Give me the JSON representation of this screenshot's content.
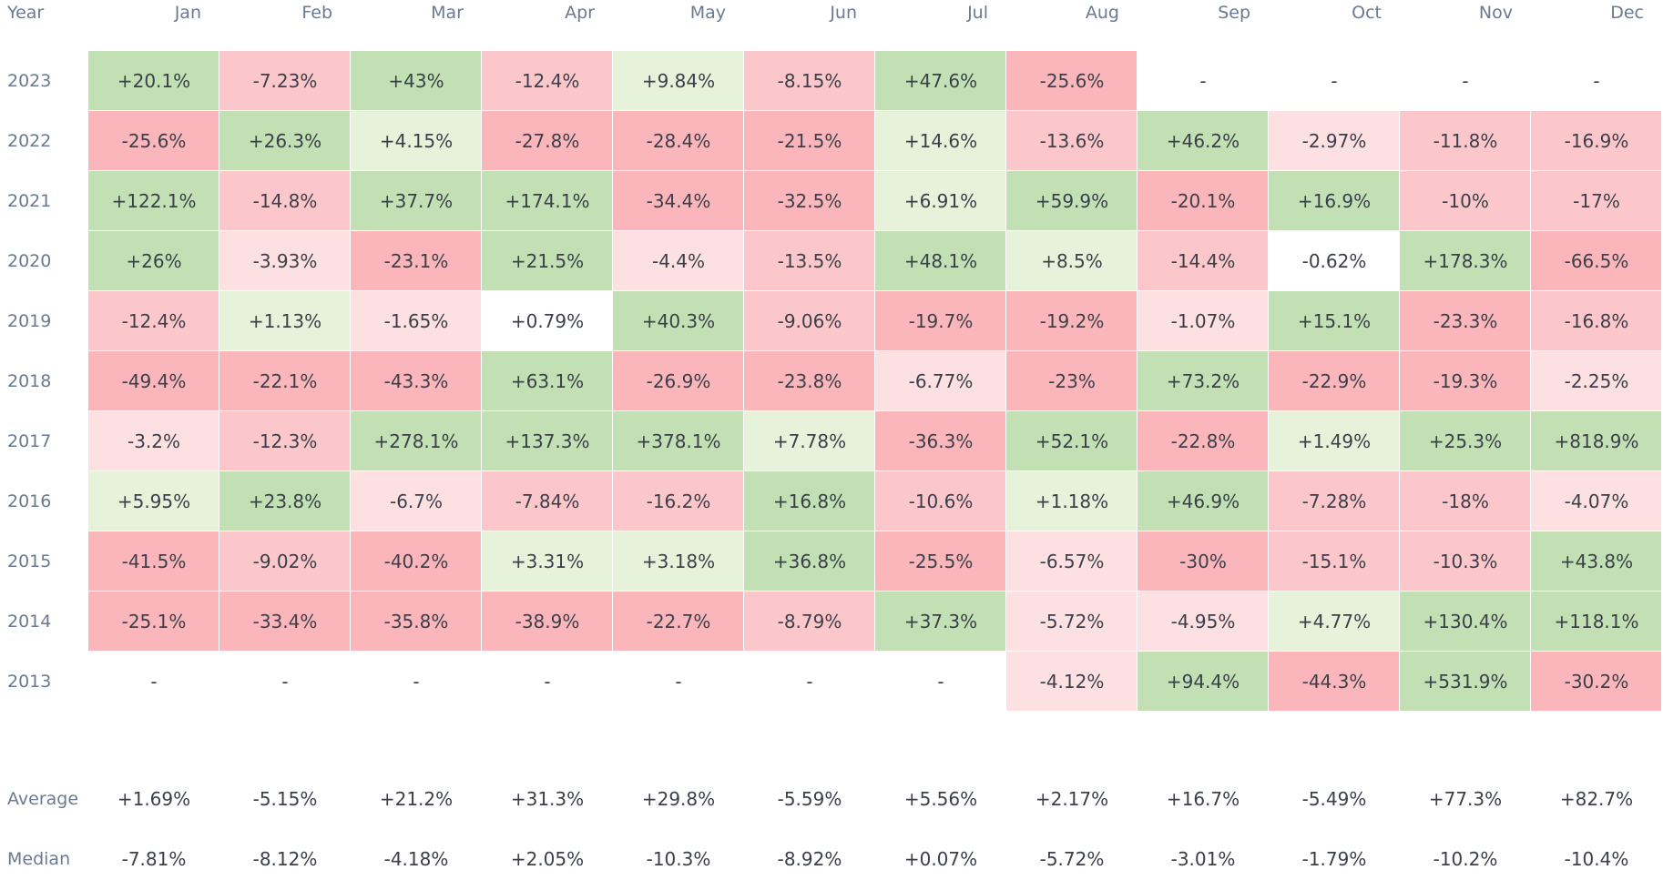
{
  "chart_data": {
    "type": "heatmap",
    "corner_label": "Year",
    "columns": [
      "Jan",
      "Feb",
      "Mar",
      "Apr",
      "May",
      "Jun",
      "Jul",
      "Aug",
      "Sep",
      "Oct",
      "Nov",
      "Dec"
    ],
    "rows": [
      {
        "year": "2023",
        "values": [
          "+20.1%",
          "-7.23%",
          "+43%",
          "-12.4%",
          "+9.84%",
          "-8.15%",
          "+47.6%",
          "-25.6%",
          "-",
          "-",
          "-",
          "-"
        ]
      },
      {
        "year": "2022",
        "values": [
          "-25.6%",
          "+26.3%",
          "+4.15%",
          "-27.8%",
          "-28.4%",
          "-21.5%",
          "+14.6%",
          "-13.6%",
          "+46.2%",
          "-2.97%",
          "-11.8%",
          "-16.9%"
        ]
      },
      {
        "year": "2021",
        "values": [
          "+122.1%",
          "-14.8%",
          "+37.7%",
          "+174.1%",
          "-34.4%",
          "-32.5%",
          "+6.91%",
          "+59.9%",
          "-20.1%",
          "+16.9%",
          "-10%",
          "-17%"
        ]
      },
      {
        "year": "2020",
        "values": [
          "+26%",
          "-3.93%",
          "-23.1%",
          "+21.5%",
          "-4.4%",
          "-13.5%",
          "+48.1%",
          "+8.5%",
          "-14.4%",
          "-0.62%",
          "+178.3%",
          "-66.5%"
        ]
      },
      {
        "year": "2019",
        "values": [
          "-12.4%",
          "+1.13%",
          "-1.65%",
          "+0.79%",
          "+40.3%",
          "-9.06%",
          "-19.7%",
          "-19.2%",
          "-1.07%",
          "+15.1%",
          "-23.3%",
          "-16.8%"
        ]
      },
      {
        "year": "2018",
        "values": [
          "-49.4%",
          "-22.1%",
          "-43.3%",
          "+63.1%",
          "-26.9%",
          "-23.8%",
          "-6.77%",
          "-23%",
          "+73.2%",
          "-22.9%",
          "-19.3%",
          "-2.25%"
        ]
      },
      {
        "year": "2017",
        "values": [
          "-3.2%",
          "-12.3%",
          "+278.1%",
          "+137.3%",
          "+378.1%",
          "+7.78%",
          "-36.3%",
          "+52.1%",
          "-22.8%",
          "+1.49%",
          "+25.3%",
          "+818.9%"
        ]
      },
      {
        "year": "2016",
        "values": [
          "+5.95%",
          "+23.8%",
          "-6.7%",
          "-7.84%",
          "-16.2%",
          "+16.8%",
          "-10.6%",
          "+1.18%",
          "+46.9%",
          "-7.28%",
          "-18%",
          "-4.07%"
        ]
      },
      {
        "year": "2015",
        "values": [
          "-41.5%",
          "-9.02%",
          "-40.2%",
          "+3.31%",
          "+3.18%",
          "+36.8%",
          "-25.5%",
          "-6.57%",
          "-30%",
          "-15.1%",
          "-10.3%",
          "+43.8%"
        ]
      },
      {
        "year": "2014",
        "values": [
          "-25.1%",
          "-33.4%",
          "-35.8%",
          "-38.9%",
          "-22.7%",
          "-8.79%",
          "+37.3%",
          "-5.72%",
          "-4.95%",
          "+4.77%",
          "+130.4%",
          "+118.1%"
        ]
      },
      {
        "year": "2013",
        "values": [
          "-",
          "-",
          "-",
          "-",
          "-",
          "-",
          "-",
          "-4.12%",
          "+94.4%",
          "-44.3%",
          "+531.9%",
          "-30.2%"
        ]
      }
    ],
    "summary": [
      {
        "label": "Average",
        "values": [
          "+1.69%",
          "-5.15%",
          "+21.2%",
          "+31.3%",
          "+29.8%",
          "-5.59%",
          "+5.56%",
          "+2.17%",
          "+16.7%",
          "-5.49%",
          "+77.3%",
          "+82.7%"
        ]
      },
      {
        "label": "Median",
        "values": [
          "-7.81%",
          "-8.12%",
          "-4.18%",
          "+2.05%",
          "-10.3%",
          "-8.92%",
          "+0.07%",
          "-5.72%",
          "-3.01%",
          "-1.79%",
          "-10.2%",
          "-10.4%"
        ]
      }
    ],
    "colors": {
      "positive_strong": "#c2e0b4",
      "positive_light": "#e6f2da",
      "negative_strong": "#fbb6bb",
      "negative_medium": "#fcc7cb",
      "negative_light": "#fde0e2",
      "neutral": "#ffffff",
      "header_text": "#6b7a90",
      "value_text": "#3a3f4a"
    }
  }
}
